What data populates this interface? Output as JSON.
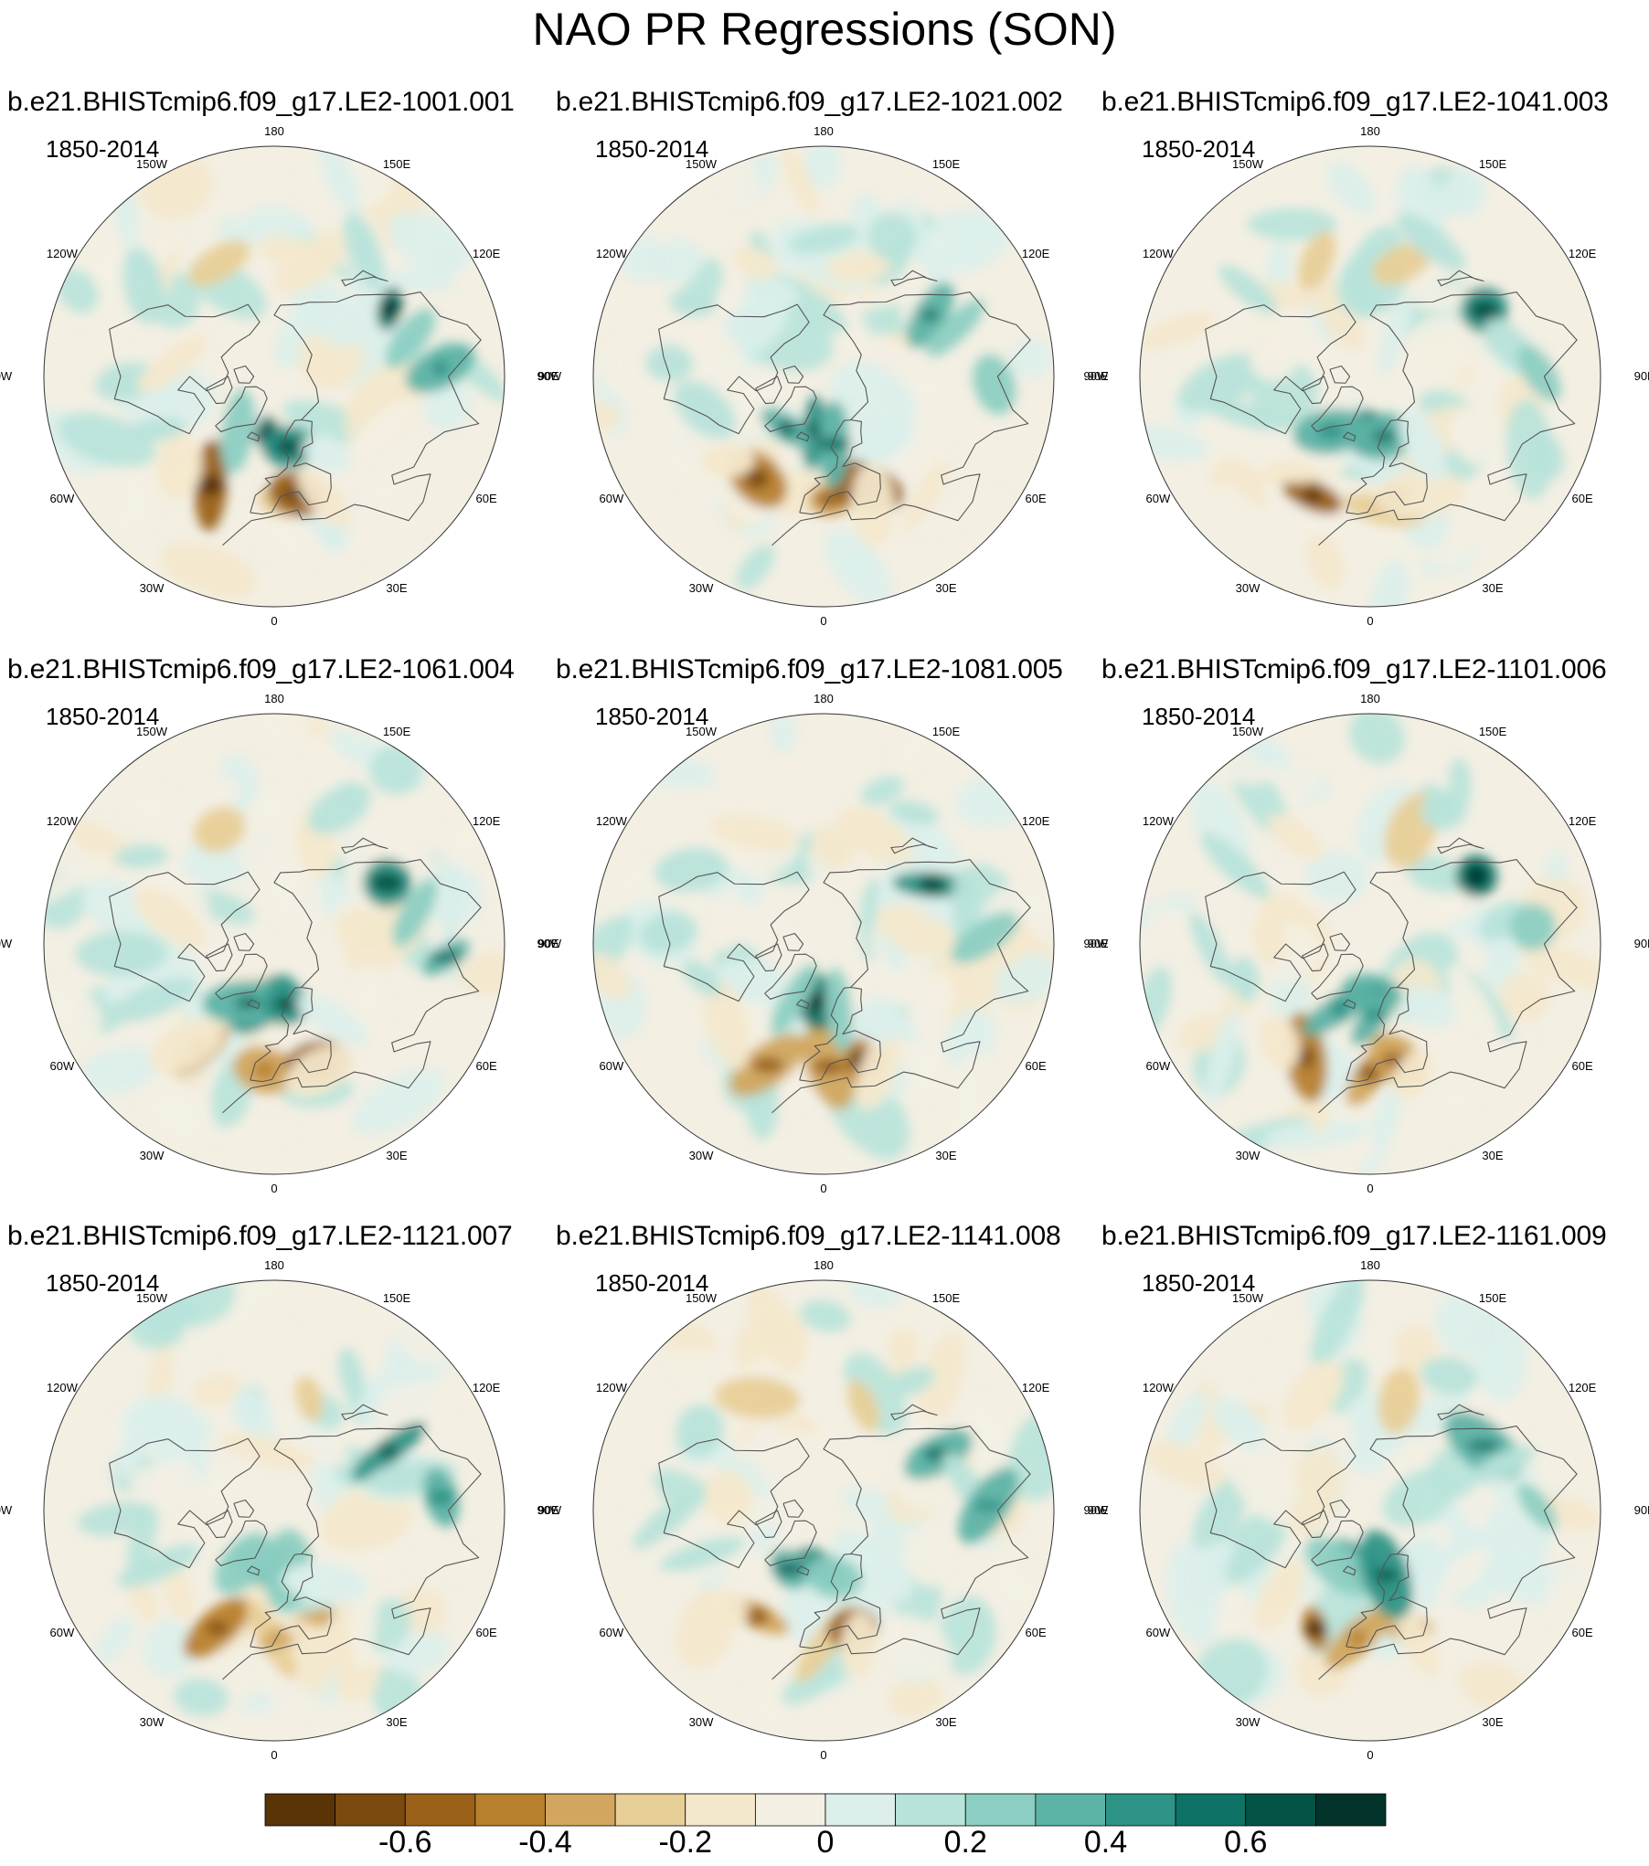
{
  "title": "NAO PR Regressions (SON)",
  "period_label": "1850-2014",
  "panels": [
    {
      "name": "b.e21.BHISTcmip6.f09_g17.LE2-1001.001"
    },
    {
      "name": "b.e21.BHISTcmip6.f09_g17.LE2-1021.002"
    },
    {
      "name": "b.e21.BHISTcmip6.f09_g17.LE2-1041.003"
    },
    {
      "name": "b.e21.BHISTcmip6.f09_g17.LE2-1061.004"
    },
    {
      "name": "b.e21.BHISTcmip6.f09_g17.LE2-1081.005"
    },
    {
      "name": "b.e21.BHISTcmip6.f09_g17.LE2-1101.006"
    },
    {
      "name": "b.e21.BHISTcmip6.f09_g17.LE2-1121.007"
    },
    {
      "name": "b.e21.BHISTcmip6.f09_g17.LE2-1141.008"
    },
    {
      "name": "b.e21.BHISTcmip6.f09_g17.LE2-1161.009"
    }
  ],
  "longitude_labels": [
    "180",
    "150E",
    "120E",
    "90E",
    "60E",
    "30E",
    "0",
    "30W",
    "60W",
    "90W",
    "120W",
    "150W"
  ],
  "chart_data": {
    "type": "heatmap",
    "projection": "north polar stereographic",
    "layout": "3x3 panels",
    "colorbar": {
      "levels": [
        -0.7,
        -0.6,
        -0.5,
        -0.4,
        -0.3,
        -0.2,
        -0.1,
        0,
        0.1,
        0.2,
        0.3,
        0.4,
        0.5,
        0.6,
        0.7
      ],
      "tick_labels": [
        "-0.6",
        "-0.4",
        "-0.2",
        "0",
        "0.2",
        "0.4",
        "0.6"
      ],
      "tick_values": [
        -0.6,
        -0.4,
        -0.2,
        0,
        0.2,
        0.4,
        0.6
      ],
      "colors": [
        "#5a3306",
        "#7a4a0f",
        "#9a6119",
        "#b8802d",
        "#d2a65e",
        "#e8cf97",
        "#f4e8cc",
        "#f3efe3",
        "#dcefeb",
        "#b8e3da",
        "#8ccfc2",
        "#5db3a6",
        "#2e9387",
        "#0f7266",
        "#035446",
        "#01332a"
      ]
    },
    "features_lonlat_value": [
      {
        "lon": -30,
        "lat": 40,
        "value": -0.4
      },
      {
        "lon": 0,
        "lat": 40,
        "value": -0.35
      },
      {
        "lon": 15,
        "lat": 42,
        "value": -0.4
      },
      {
        "lon": -45,
        "lat": 40,
        "value": -0.15
      },
      {
        "lon": 20,
        "lat": 38,
        "value": -0.15
      },
      {
        "lon": -5,
        "lat": 68,
        "value": 0.45
      },
      {
        "lon": -30,
        "lat": 64,
        "value": 0.3
      },
      {
        "lon": 8,
        "lat": 64,
        "value": 0.35
      },
      {
        "lon": -70,
        "lat": 40,
        "value": 0.15
      },
      {
        "lon": 120,
        "lat": 40,
        "value": 0.45
      },
      {
        "lon": 105,
        "lat": 35,
        "value": 0.2
      },
      {
        "lon": 90,
        "lat": 25,
        "value": 0.3
      },
      {
        "lon": 160,
        "lat": 45,
        "value": -0.2
      },
      {
        "lon": -150,
        "lat": 40,
        "value": -0.2
      },
      {
        "lon": -90,
        "lat": 30,
        "value": 0.15
      },
      {
        "lon": -100,
        "lat": 50,
        "value": -0.1
      },
      {
        "lon": 60,
        "lat": 45,
        "value": -0.08
      },
      {
        "lon": 150,
        "lat": 30,
        "value": 0.15
      },
      {
        "lon": -120,
        "lat": 30,
        "value": 0.1
      },
      {
        "lon": 40,
        "lat": 55,
        "value": 0.08
      }
    ]
  }
}
